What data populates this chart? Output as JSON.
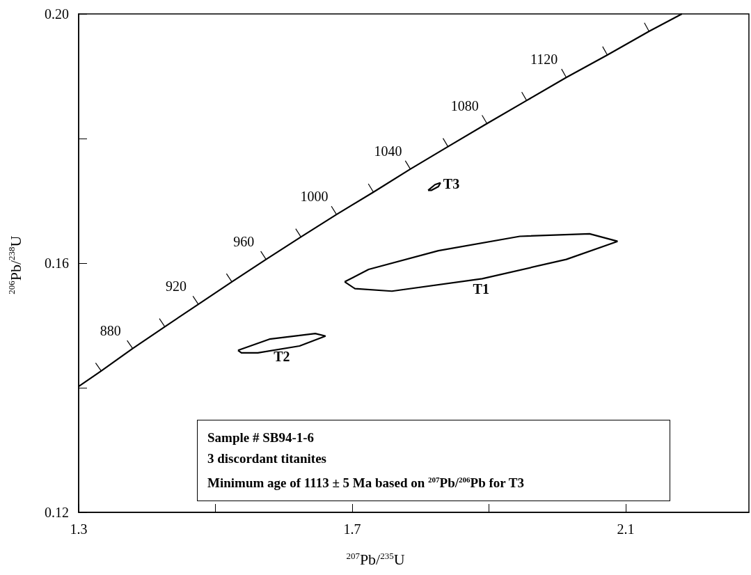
{
  "chart_data": {
    "type": "line",
    "xlabel": "$^{207}$Pb/$^{235}$U",
    "ylabel": "$^{206}$Pb/$^{238}$U",
    "xlim": [
      1.3,
      2.28
    ],
    "ylim": [
      0.12,
      0.2
    ],
    "xticks": [
      {
        "value": 1.3,
        "label": "1.3"
      },
      {
        "value": 1.5,
        "label": null
      },
      {
        "value": 1.7,
        "label": "1.7"
      },
      {
        "value": 1.9,
        "label": null
      },
      {
        "value": 2.1,
        "label": "2.1"
      }
    ],
    "yticks": [
      {
        "value": 0.12,
        "label": "0.12"
      },
      {
        "value": 0.14,
        "label": null
      },
      {
        "value": 0.16,
        "label": "0.16"
      },
      {
        "value": 0.18,
        "label": null
      },
      {
        "value": 0.2,
        "label": "0.20"
      }
    ],
    "series": [
      {
        "color": "#000000",
        "x": [
          1.3,
          1.333,
          1.379,
          1.426,
          1.475,
          1.524,
          1.574,
          1.625,
          1.677,
          1.731,
          1.785,
          1.84,
          1.897,
          1.955,
          2.013,
          2.073,
          2.134,
          2.182
        ],
        "values": [
          0.1402,
          0.1427,
          0.1463,
          0.1498,
          0.1534,
          0.157,
          0.1606,
          0.1642,
          0.1678,
          0.1714,
          0.1751,
          0.1787,
          0.1824,
          0.1861,
          0.1898,
          0.1934,
          0.1972,
          0.2
        ]
      },
      {
        "name": "T1",
        "color": "#000000",
        "x": [
          1.689,
          1.704,
          1.758,
          1.89,
          2.013,
          2.088
        ],
        "values": [
          0.157,
          0.1559,
          0.1555,
          0.1575,
          0.1606,
          0.1635
        ]
      },
      {
        "color": "#000000",
        "x": [
          1.689,
          1.724,
          1.826,
          1.945,
          2.047,
          2.088
        ],
        "values": [
          0.157,
          0.159,
          0.162,
          0.1643,
          0.1647,
          0.1635
        ]
      },
      {
        "name": "T2",
        "color": "#000000",
        "x": [
          1.533,
          1.538,
          1.562,
          1.623,
          1.661
        ],
        "values": [
          0.146,
          0.1456,
          0.1456,
          0.1467,
          0.1483
        ]
      },
      {
        "color": "#000000",
        "x": [
          1.533,
          1.579,
          1.646,
          1.661
        ],
        "values": [
          0.146,
          0.1478,
          0.1487,
          0.1483
        ]
      },
      {
        "name": "T3",
        "color": "#000000",
        "x": [
          1.811,
          1.821,
          1.829
        ],
        "values": [
          0.1717,
          0.1726,
          0.1729
        ]
      },
      {
        "color": "#000000",
        "x": [
          1.811,
          1.816,
          1.826,
          1.829
        ],
        "values": [
          0.1717,
          0.1717,
          0.1723,
          0.1729
        ]
      }
    ],
    "annotations": [
      {
        "text": "880",
        "x": 1.379,
        "y": 0.1463
      },
      {
        "text": "920",
        "x": 1.475,
        "y": 0.1534
      },
      {
        "text": "960",
        "x": 1.574,
        "y": 0.1606
      },
      {
        "text": "1000",
        "x": 1.677,
        "y": 0.1678
      },
      {
        "text": "1040",
        "x": 1.785,
        "y": 0.1751
      },
      {
        "text": "1080",
        "x": 1.897,
        "y": 0.1824
      },
      {
        "text": "1120",
        "x": 2.013,
        "y": 0.1898
      },
      "Sample # SB94-1-6",
      "3 discordant titanites",
      "Minimum age of 1113 ± 5 Ma based on $^{207}$Pb/$^{206}$Pb for T3"
    ]
  }
}
